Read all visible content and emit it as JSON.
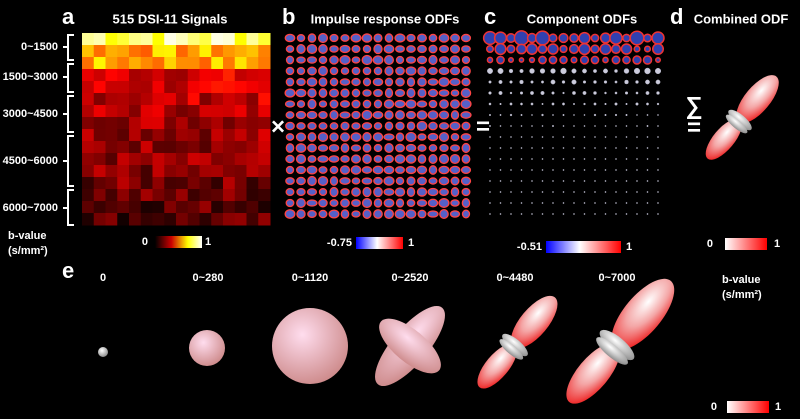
{
  "panels": {
    "a": {
      "label": "a",
      "title": "515 DSI-11 Signals",
      "b_ranges": [
        "0~1500",
        "1500~3000",
        "3000~4500",
        "4500~6000",
        "6000~7000"
      ],
      "axis_label": "b-value",
      "axis_unit": "(s/mm²)",
      "colorbar": [
        "0",
        "1"
      ]
    },
    "b": {
      "label": "b",
      "title": "Impulse response ODFs",
      "operator": "×",
      "colorbar": [
        "-0.75",
        "1"
      ]
    },
    "c": {
      "label": "c",
      "title": "Component ODFs",
      "operator": "=",
      "colorbar": [
        "-0.51",
        "1"
      ]
    },
    "d": {
      "label": "d",
      "title": "Combined ODF",
      "operators": [
        "∑",
        "="
      ],
      "colorbar": [
        "0",
        "1"
      ]
    },
    "e": {
      "label": "e",
      "steps": [
        "0",
        "0~280",
        "0~1120",
        "0~2520",
        "0~4480",
        "0~7000"
      ],
      "axis_label": "b-value",
      "axis_unit": "(s/mm²)",
      "colorbar": [
        "0",
        "1"
      ]
    }
  }
}
